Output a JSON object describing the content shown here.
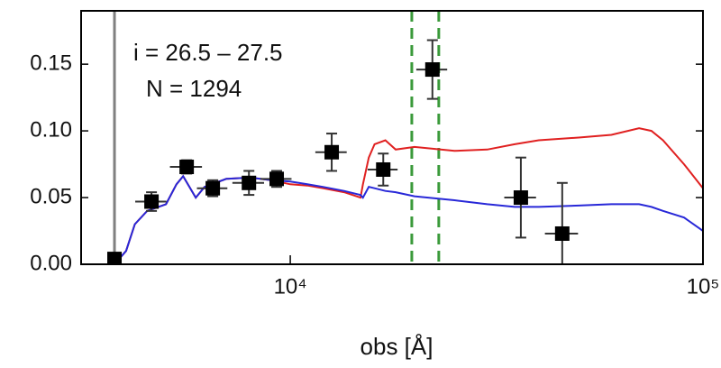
{
  "chart_data": {
    "type": "line",
    "annotations": [
      "i  = 26.5 – 27.5",
      "N  = 1294"
    ],
    "xlabel": "obs [Å]",
    "xscale": "log",
    "xlim": [
      3113,
      100000
    ],
    "ylim": [
      0,
      0.19
    ],
    "xticks": [
      {
        "value": 10000,
        "label": "10⁴"
      },
      {
        "value": 100000,
        "label": "10⁵"
      }
    ],
    "yticks": [
      {
        "value": 0,
        "label": "0.00"
      },
      {
        "value": 0.05,
        "label": "0.05"
      },
      {
        "value": 0.1,
        "label": "0.10"
      },
      {
        "value": 0.15,
        "label": "0.15"
      }
    ],
    "vlines": [
      {
        "x": 3750,
        "color": "#808080",
        "style": "solid"
      },
      {
        "x": 19700,
        "color": "#3a9a3a",
        "style": "dashed"
      },
      {
        "x": 22900,
        "color": "#3a9a3a",
        "style": "dashed"
      }
    ],
    "series": [
      {
        "type": "line",
        "color": "#e02020",
        "x": [
          3750,
          4000,
          4200,
          4500,
          5000,
          5300,
          5500,
          5900,
          6200,
          7000,
          8000,
          9000,
          10000,
          11000,
          12000,
          13500,
          14800,
          15000,
          15500,
          16000,
          17000,
          18000,
          20000,
          25000,
          30000,
          35000,
          40000,
          50000,
          60000,
          70000,
          75000,
          80000,
          90000,
          100000
        ],
        "values": [
          0.0,
          0.01,
          0.03,
          0.04,
          0.045,
          0.06,
          0.066,
          0.05,
          0.058,
          0.064,
          0.065,
          0.063,
          0.06,
          0.059,
          0.057,
          0.054,
          0.05,
          0.06,
          0.08,
          0.09,
          0.093,
          0.086,
          0.088,
          0.085,
          0.086,
          0.09,
          0.093,
          0.095,
          0.097,
          0.102,
          0.1,
          0.093,
          0.075,
          0.057
        ]
      },
      {
        "type": "line",
        "color": "#2828d8",
        "x": [
          3750,
          4000,
          4200,
          4500,
          5000,
          5300,
          5500,
          5900,
          6200,
          7000,
          8000,
          9000,
          10000,
          11000,
          12000,
          13500,
          14800,
          15000,
          15500,
          16000,
          17000,
          18000,
          20000,
          25000,
          30000,
          35000,
          40000,
          50000,
          60000,
          70000,
          75000,
          80000,
          90000,
          100000
        ],
        "values": [
          0.0,
          0.01,
          0.03,
          0.04,
          0.045,
          0.06,
          0.066,
          0.05,
          0.058,
          0.064,
          0.065,
          0.063,
          0.062,
          0.06,
          0.058,
          0.055,
          0.052,
          0.05,
          0.058,
          0.057,
          0.055,
          0.054,
          0.051,
          0.048,
          0.045,
          0.043,
          0.043,
          0.044,
          0.045,
          0.045,
          0.043,
          0.04,
          0.035,
          0.025
        ]
      },
      {
        "type": "scatter",
        "color": "#000000",
        "x": [
          3750,
          4610,
          5610,
          6490,
          7940,
          9270,
          12600,
          16800,
          22100,
          36200,
          45600
        ],
        "values": [
          0.004,
          0.047,
          0.073,
          0.057,
          0.061,
          0.064,
          0.084,
          0.071,
          0.146,
          0.05,
          0.023
        ],
        "yerr": [
          0.002,
          0.007,
          0.005,
          0.006,
          0.009,
          0.006,
          0.014,
          0.012,
          0.022,
          0.03,
          0.038
        ],
        "xerr": [
          0,
          400,
          500,
          550,
          700,
          800,
          1100,
          1400,
          1900,
          3200,
          4200
        ]
      }
    ]
  }
}
